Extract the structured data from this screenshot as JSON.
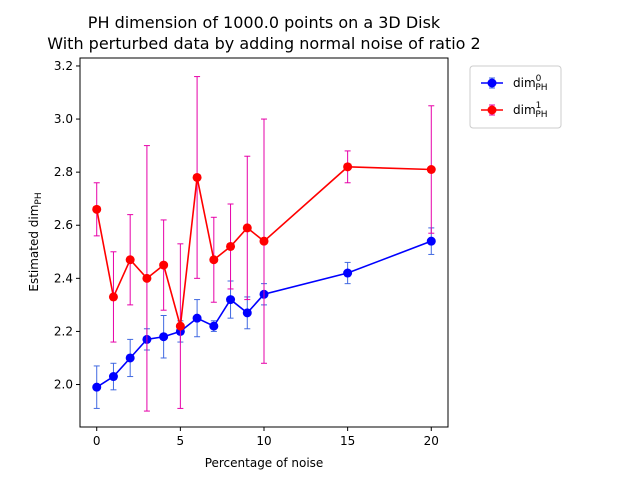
{
  "chart_data": {
    "type": "line",
    "title": "PH dimension of 1000.0 points on a 3D Disk",
    "subtitle": "With perturbed data by adding normal noise of ratio 2",
    "xlabel": "Percentage of noise",
    "ylabel_main": "Estimated dim",
    "ylabel_sub": "PH",
    "xlim": [
      -1,
      21
    ],
    "ylim": [
      1.84,
      3.23
    ],
    "xticks": [
      0,
      5,
      10,
      15,
      20
    ],
    "yticks": [
      2.0,
      2.2,
      2.4,
      2.6,
      2.8,
      3.0,
      3.2
    ],
    "legend_position": "outside top-right",
    "series": [
      {
        "name": "dim",
        "name_sup": "0",
        "name_sub": "PH",
        "color": "#0000ff",
        "errorbar_color": "#4169e1",
        "x": [
          0,
          1,
          2,
          3,
          4,
          5,
          6,
          7,
          8,
          9,
          10,
          15,
          20
        ],
        "y": [
          1.99,
          2.03,
          2.1,
          2.17,
          2.18,
          2.2,
          2.25,
          2.22,
          2.32,
          2.27,
          2.34,
          2.42,
          2.54
        ],
        "err": [
          0.08,
          0.05,
          0.07,
          0.04,
          0.08,
          0.04,
          0.07,
          0.02,
          0.07,
          0.06,
          0.04,
          0.04,
          0.05
        ]
      },
      {
        "name": "dim",
        "name_sup": "1",
        "name_sub": "PH",
        "color": "#ff0000",
        "errorbar_color": "#e600a8",
        "x": [
          0,
          1,
          2,
          3,
          4,
          5,
          6,
          7,
          8,
          9,
          10,
          15,
          20
        ],
        "y": [
          2.66,
          2.33,
          2.47,
          2.4,
          2.45,
          2.22,
          2.78,
          2.47,
          2.52,
          2.59,
          2.54,
          2.82,
          2.81
        ],
        "err": [
          0.1,
          0.17,
          0.17,
          0.5,
          0.17,
          0.31,
          0.38,
          0.16,
          0.16,
          0.27,
          0.46,
          0.06,
          0.24
        ]
      }
    ]
  }
}
